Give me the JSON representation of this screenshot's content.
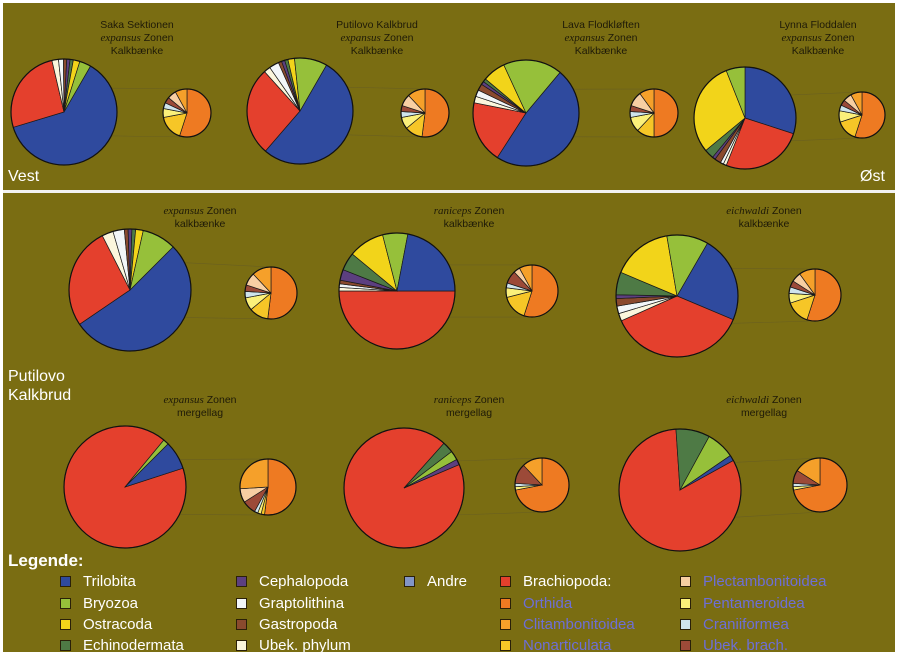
{
  "titles": {
    "vest": "Vest",
    "ost": "Øst",
    "putilovo_line1": "Putilovo",
    "putilovo_line2": "Kalkbrud"
  },
  "captions": {
    "top": [
      {
        "line1": "Saka Sektionen",
        "zone_word": "expansus",
        "zone_rest": " Zonen",
        "line3": "Kalkbænke"
      },
      {
        "line1": "Putilovo Kalkbrud",
        "zone_word": "expansus",
        "zone_rest": " Zonen",
        "line3": "Kalkbænke"
      },
      {
        "line1": "Lava Flodkløften",
        "zone_word": "expansus",
        "zone_rest": " Zonen",
        "line3": "Kalkbænke"
      },
      {
        "line1": "Lynna Floddalen",
        "zone_word": "expansus",
        "zone_rest": " Zonen",
        "line3": "Kalkbænke"
      }
    ],
    "kalk": [
      {
        "zone_word": "expansus",
        "zone_rest": " Zonen",
        "line2": "kalkbænke"
      },
      {
        "zone_word": "raniceps",
        "zone_rest": " Zonen",
        "line2": "kalkbænke"
      },
      {
        "zone_word": "eichwaldi",
        "zone_rest": " Zonen",
        "line2": "kalkbænke"
      }
    ],
    "merg": [
      {
        "zone_word": "expansus",
        "zone_rest": " Zonen",
        "line2": "mergellag"
      },
      {
        "zone_word": "raniceps",
        "zone_rest": " Zonen",
        "line2": "mergellag"
      },
      {
        "zone_word": "eichwaldi",
        "zone_rest": " Zonen",
        "line2": "mergellag"
      }
    ]
  },
  "legend": {
    "title": "Legende:",
    "items": [
      {
        "label": "Trilobita",
        "color": "#2f4a9e",
        "sub": false
      },
      {
        "label": "Bryozoa",
        "color": "#96c03a",
        "sub": false
      },
      {
        "label": "Ostracoda",
        "color": "#f2d41a",
        "sub": false
      },
      {
        "label": "Echinodermata",
        "color": "#4e7a45",
        "sub": false
      },
      {
        "label": "Cephalopoda",
        "color": "#5c3f80",
        "sub": false
      },
      {
        "label": "Graptolithina",
        "color": "#f2f6f8",
        "sub": false
      },
      {
        "label": "Gastropoda",
        "color": "#8a4a2e",
        "sub": false
      },
      {
        "label": "Ubek. phylum",
        "color": "#fbf6dc",
        "sub": false
      },
      {
        "label": "Andre",
        "color": "#8295c6",
        "sub": false
      },
      {
        "label": "Brachiopoda:",
        "color": "#e4402d",
        "sub": false
      },
      {
        "label": "Orthida",
        "color": "#ee7a22",
        "sub": true
      },
      {
        "label": "Clitambonitoidea",
        "color": "#f5a02a",
        "sub": true
      },
      {
        "label": "Nonarticulata",
        "color": "#f6c627",
        "sub": true
      },
      {
        "label": "Plectambonitoidea",
        "color": "#f7cfa3",
        "sub": true
      },
      {
        "label": "Pentameroidea",
        "color": "#fbf07a",
        "sub": true
      },
      {
        "label": "Craniiformea",
        "color": "#cfe4ec",
        "sub": true
      },
      {
        "label": "Ubek. brach.",
        "color": "#9c4a38",
        "sub": true
      }
    ]
  },
  "chart_data": {
    "type": "pie",
    "groups": [
      {
        "caption": "Saka Sektionen expansus Zonen Kalkbænke",
        "main": {
          "labels": [
            "Trilobita",
            "Brachiopoda:",
            "Ubek. phylum",
            "Graptolithina",
            "Gastropoda",
            "Cephalopoda",
            "Echinodermata",
            "Ostracoda",
            "Bryozoa"
          ],
          "values": [
            62,
            26,
            2,
            1.5,
            1,
            1,
            1,
            2,
            3.5
          ]
        },
        "brach": {
          "labels": [
            "Orthida",
            "Nonarticulata",
            "Pentameroidea",
            "Craniiformea",
            "Ubek. brach.",
            "Plectambonitoidea",
            "Clitambonitoidea"
          ],
          "values": [
            55,
            17,
            6,
            4,
            4,
            6,
            8
          ]
        }
      },
      {
        "caption": "Putilovo Kalkbrud expansus Zonen Kalkbænke",
        "main": {
          "labels": [
            "Trilobita",
            "Brachiopoda:",
            "Ubek. phylum",
            "Graptolithina",
            "Gastropoda",
            "Cephalopoda",
            "Echinodermata",
            "Ostracoda",
            "Bryozoa"
          ],
          "values": [
            53,
            27,
            2,
            3,
            1,
            1,
            1,
            2,
            10
          ]
        },
        "brach": {
          "labels": [
            "Orthida",
            "Nonarticulata",
            "Pentameroidea",
            "Craniiformea",
            "Ubek. brach.",
            "Plectambonitoidea",
            "Clitambonitoidea"
          ],
          "values": [
            52,
            12,
            8,
            4,
            4,
            8,
            12
          ]
        }
      },
      {
        "caption": "Lava Flodkløften expansus Zonen Kalkbænke",
        "main": {
          "labels": [
            "Trilobita",
            "Brachiopoda:",
            "Ubek. phylum",
            "Graptolithina",
            "Gastropoda",
            "Cephalopoda",
            "Echinodermata",
            "Ostracoda",
            "Bryozoa"
          ],
          "values": [
            48,
            19,
            2,
            2,
            2,
            1,
            1,
            7,
            18
          ]
        },
        "brach": {
          "labels": [
            "Orthida",
            "Nonarticulata",
            "Pentameroidea",
            "Craniiformea",
            "Ubek. brach.",
            "Plectambonitoidea",
            "Clitambonitoidea"
          ],
          "values": [
            50,
            12,
            10,
            4,
            4,
            10,
            10
          ]
        }
      },
      {
        "caption": "Lynna Floddalen expansus Zonen Kalkbænke",
        "main": {
          "labels": [
            "Trilobita",
            "Brachiopoda:",
            "Ubek. phylum",
            "Graptolithina",
            "Gastropoda",
            "Cephalopoda",
            "Echinodermata",
            "Ostracoda",
            "Bryozoa"
          ],
          "values": [
            30,
            26,
            1,
            1,
            2,
            1,
            3,
            30,
            6
          ]
        },
        "brach": {
          "labels": [
            "Orthida",
            "Nonarticulata",
            "Pentameroidea",
            "Craniiformea",
            "Ubek. brach.",
            "Plectambonitoidea",
            "Clitambonitoidea"
          ],
          "values": [
            55,
            15,
            8,
            4,
            4,
            6,
            8
          ]
        }
      },
      {
        "caption": "expansus Zonen kalkbænke",
        "main": {
          "labels": [
            "Trilobita",
            "Brachiopoda:",
            "Ubek. phylum",
            "Graptolithina",
            "Gastropoda",
            "Cephalopoda",
            "Echinodermata",
            "Ostracoda",
            "Bryozoa"
          ],
          "values": [
            53,
            27,
            3,
            3,
            1,
            1,
            1,
            2,
            9
          ]
        },
        "brach": {
          "labels": [
            "Orthida",
            "Nonarticulata",
            "Pentameroidea",
            "Craniiformea",
            "Ubek. brach.",
            "Plectambonitoidea",
            "Clitambonitoidea"
          ],
          "values": [
            52,
            12,
            8,
            4,
            4,
            8,
            12
          ]
        }
      },
      {
        "caption": "raniceps Zonen kalkbænke",
        "main": {
          "labels": [
            "Brachiopoda:",
            "Ubek. phylum",
            "Graptolithina",
            "Gastropoda",
            "Cephalopoda",
            "Echinodermata",
            "Ostracoda",
            "Bryozoa",
            "Trilobita"
          ],
          "values": [
            50,
            1,
            1,
            1,
            3,
            5,
            10,
            7,
            22
          ]
        },
        "brach": {
          "labels": [
            "Orthida",
            "Nonarticulata",
            "Pentameroidea",
            "Craniiformea",
            "Ubek. brach.",
            "Plectambonitoidea",
            "Clitambonitoidea"
          ],
          "values": [
            55,
            16,
            6,
            3,
            8,
            4,
            8
          ]
        }
      },
      {
        "caption": "eichwaldi Zonen kalkbænke",
        "main": {
          "labels": [
            "Trilobita",
            "Brachiopoda:",
            "Ubek. phylum",
            "Graptolithina",
            "Gastropoda",
            "Cephalopoda",
            "Echinodermata",
            "Ostracoda",
            "Bryozoa"
          ],
          "values": [
            23,
            37,
            2,
            2,
            2,
            1,
            6,
            16,
            11
          ]
        },
        "brach": {
          "labels": [
            "Orthida",
            "Nonarticulata",
            "Pentameroidea",
            "Craniiformea",
            "Ubek. brach.",
            "Plectambonitoidea",
            "Clitambonitoidea"
          ],
          "values": [
            55,
            15,
            6,
            4,
            4,
            6,
            10
          ]
        }
      },
      {
        "caption": "expansus Zonen mergellag",
        "main": {
          "labels": [
            "Brachiopoda:",
            "Bryozoa",
            "Trilobita"
          ],
          "values": [
            91,
            1.5,
            7.5
          ]
        },
        "brach": {
          "labels": [
            "Orthida",
            "Nonarticulata",
            "Pentameroidea",
            "Craniiformea",
            "Ubek. brach.",
            "Plectambonitoidea",
            "Clitambonitoidea"
          ],
          "values": [
            52,
            2,
            2,
            2,
            8,
            8,
            26
          ]
        }
      },
      {
        "caption": "raniceps Zonen mergellag",
        "main": {
          "labels": [
            "Brachiopoda:",
            "Echinodermata",
            "Bryozoa",
            "Cephalopoda"
          ],
          "values": [
            93,
            3,
            2.5,
            1.5
          ]
        },
        "brach": {
          "labels": [
            "Orthida",
            "Pentameroidea",
            "Craniiformea",
            "Ubek. brach.",
            "Clitambonitoidea"
          ],
          "values": [
            72,
            2,
            2,
            12,
            12
          ]
        }
      },
      {
        "caption": "eichwaldi Zonen mergellag",
        "main": {
          "labels": [
            "Brachiopoda:",
            "Echinodermata",
            "Bryozoa",
            "Trilobita"
          ],
          "values": [
            82,
            9,
            7.5,
            1.5
          ]
        },
        "brach": {
          "labels": [
            "Orthida",
            "Pentameroidea",
            "Craniiformea",
            "Ubek. brach.",
            "Clitambonitoidea"
          ],
          "values": [
            72,
            2,
            2,
            8,
            16
          ]
        }
      }
    ]
  }
}
